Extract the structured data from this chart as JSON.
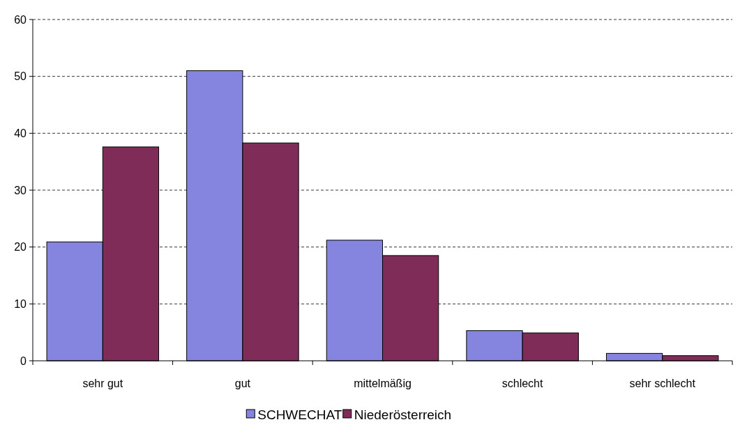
{
  "chart_data": {
    "type": "bar",
    "categories": [
      "sehr gut",
      "gut",
      "mittelmäßig",
      "schlecht",
      "sehr schlecht"
    ],
    "series": [
      {
        "name": "SCHWECHAT",
        "color": "#8585e0",
        "values": [
          20.9,
          51.0,
          21.2,
          5.3,
          1.3
        ]
      },
      {
        "name": "Niederösterreich",
        "color": "#802c58",
        "values": [
          37.6,
          38.3,
          18.5,
          4.9,
          0.9
        ]
      }
    ],
    "ylim": [
      0,
      60
    ],
    "yticks": [
      0,
      10,
      20,
      30,
      40,
      50,
      60
    ],
    "grid": "y",
    "legend": "bottom"
  }
}
